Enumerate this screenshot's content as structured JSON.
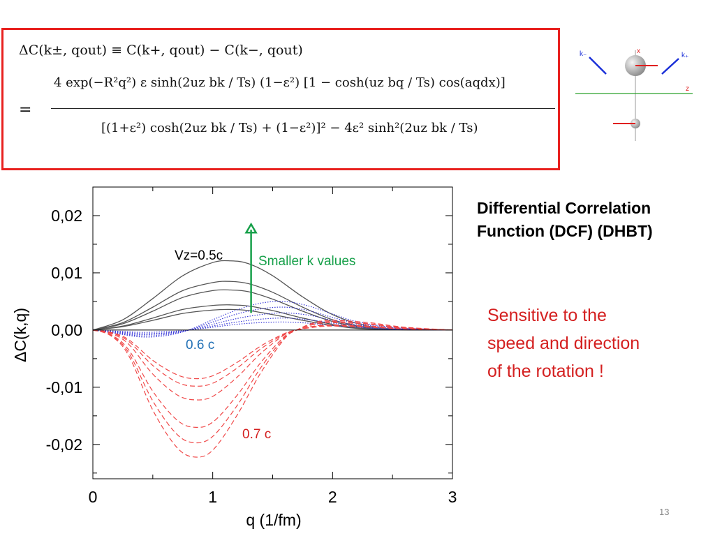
{
  "formula": {
    "line1": "ΔC(k±, qout) ≡ C(k+, qout) − C(k−, qout)",
    "eq": "=",
    "numerator": "4 exp(−R²q²) ε sinh(2uz bk / Ts) (1−ε²) [1 − cosh(uz bq / Ts) cos(aqdx)]",
    "denominator": "[(1+ε²) cosh(2uz bk / Ts) + (1−ε²)]² − 4ε² sinh²(2uz bk / Ts)"
  },
  "diagram": {
    "label_kminus": "k₋",
    "label_kplus": "k₊",
    "label_x": "x",
    "label_z": "z",
    "colors": {
      "axis_z": "#2aa02a",
      "axis_x": "#e02020",
      "k_arrows": "#1a2fd8"
    }
  },
  "heading": {
    "line1": "Differential Correlation",
    "line2": "Function (DCF) (DHBT)"
  },
  "note": {
    "line1": "Sensitive to  the",
    "line2": "speed and direction",
    "line3": "of the rotation !"
  },
  "page_number": "13",
  "chart_data": {
    "type": "line",
    "xlabel": "q  (1/fm)",
    "ylabel": "ΔC(k,q)",
    "xlim": [
      0,
      3
    ],
    "ylim": [
      -0.026,
      0.025
    ],
    "x_ticks": [
      "0",
      "1",
      "2",
      "3"
    ],
    "y_ticks": [
      "0,02",
      "0,01",
      "0,00",
      "-0,01",
      "-0,02"
    ],
    "y_tick_values": [
      0.02,
      0.01,
      0.0,
      -0.01,
      -0.02
    ],
    "grid": false,
    "annotations": {
      "vz05": "Vz=0.5c",
      "vz06": "0.6 c",
      "vz07": "0.7 c",
      "arrow_label": "Smaller k values",
      "colors": {
        "black": "#000000",
        "blue": "#1f6fb5",
        "red": "#d42020",
        "green": "#17a04a"
      }
    },
    "series_groups": [
      {
        "group": "Vz=0.5c",
        "style": "solid",
        "color": "#555555",
        "curves": [
          {
            "x": [
              0,
              0.25,
              0.5,
              0.75,
              1.0,
              1.15,
              1.3,
              1.5,
              1.75,
              2.0,
              2.25,
              2.5,
              3.0
            ],
            "y": [
              0,
              0.0018,
              0.0055,
              0.0095,
              0.0118,
              0.0121,
              0.0116,
              0.0095,
              0.0058,
              0.0027,
              0.0009,
              0.0002,
              0
            ]
          },
          {
            "x": [
              0,
              0.25,
              0.5,
              0.75,
              1.0,
              1.15,
              1.3,
              1.5,
              1.75,
              2.0,
              2.25,
              2.5,
              3.0
            ],
            "y": [
              0,
              0.0013,
              0.004,
              0.0069,
              0.0083,
              0.0085,
              0.0081,
              0.0066,
              0.004,
              0.0018,
              0.0006,
              0.0001,
              0
            ]
          },
          {
            "x": [
              0,
              0.25,
              0.5,
              0.75,
              1.0,
              1.15,
              1.3,
              1.5,
              1.75,
              2.0,
              2.25,
              2.5,
              3.0
            ],
            "y": [
              0,
              0.0011,
              0.0033,
              0.0057,
              0.0069,
              0.007,
              0.0067,
              0.0054,
              0.0033,
              0.0015,
              0.0005,
              0.0001,
              0
            ]
          },
          {
            "x": [
              0,
              0.25,
              0.5,
              0.75,
              1.0,
              1.15,
              1.3,
              1.5,
              1.75,
              2.0,
              2.25,
              2.5,
              3.0
            ],
            "y": [
              0,
              0.0007,
              0.0021,
              0.0036,
              0.0043,
              0.0044,
              0.0042,
              0.0034,
              0.0021,
              0.001,
              0.0003,
              0.0001,
              0
            ]
          },
          {
            "x": [
              0,
              0.25,
              0.5,
              0.75,
              1.0,
              1.15,
              1.3,
              1.5,
              1.75,
              2.0,
              2.25,
              2.5,
              3.0
            ],
            "y": [
              0,
              0.0006,
              0.0017,
              0.0029,
              0.0035,
              0.0036,
              0.0034,
              0.0027,
              0.0017,
              0.0008,
              0.0002,
              0.0001,
              0
            ]
          }
        ]
      },
      {
        "group": "0.6 c",
        "style": "dotted",
        "color": "#3a3ad8",
        "curves": [
          {
            "x": [
              0,
              0.2,
              0.4,
              0.6,
              0.8,
              1.0,
              1.2,
              1.4,
              1.6,
              1.8,
              2.0,
              2.2,
              2.5,
              3.0
            ],
            "y": [
              0,
              -0.0006,
              -0.0012,
              -0.001,
              0.0,
              0.0018,
              0.0035,
              0.0047,
              0.005,
              0.0042,
              0.0028,
              0.0015,
              0.0005,
              0
            ]
          },
          {
            "x": [
              0,
              0.2,
              0.4,
              0.6,
              0.8,
              1.0,
              1.2,
              1.4,
              1.6,
              1.8,
              2.0,
              2.2,
              2.5,
              3.0
            ],
            "y": [
              0,
              -0.0005,
              -0.001,
              -0.0008,
              0.0,
              0.0014,
              0.0028,
              0.0037,
              0.004,
              0.0034,
              0.0022,
              0.0012,
              0.0004,
              0
            ]
          },
          {
            "x": [
              0,
              0.2,
              0.4,
              0.6,
              0.8,
              1.0,
              1.2,
              1.4,
              1.6,
              1.8,
              2.0,
              2.2,
              2.5,
              3.0
            ],
            "y": [
              0,
              -0.0004,
              -0.0008,
              -0.0006,
              0.0,
              0.001,
              0.002,
              0.0027,
              0.003,
              0.0026,
              0.0017,
              0.0009,
              0.0003,
              0
            ]
          },
          {
            "x": [
              0,
              0.2,
              0.4,
              0.6,
              0.8,
              1.0,
              1.2,
              1.4,
              1.6,
              1.8,
              2.0,
              2.2,
              2.5,
              3.0
            ],
            "y": [
              0,
              -0.0003,
              -0.0006,
              -0.0005,
              0.0,
              0.0007,
              0.0014,
              0.0019,
              0.0021,
              0.0018,
              0.0012,
              0.0007,
              0.0002,
              0
            ]
          },
          {
            "x": [
              0,
              0.2,
              0.4,
              0.6,
              0.8,
              1.0,
              1.2,
              1.4,
              1.6,
              1.8,
              2.0,
              2.2,
              2.5,
              3.0
            ],
            "y": [
              0,
              -0.0002,
              -0.0004,
              -0.0003,
              0.0,
              0.0005,
              0.001,
              0.0013,
              0.0014,
              0.0012,
              0.0008,
              0.0005,
              0.0001,
              0
            ]
          }
        ]
      },
      {
        "group": "0.7 c",
        "style": "dashed",
        "color": "#f04848",
        "curves": [
          {
            "x": [
              0,
              0.15,
              0.3,
              0.5,
              0.7,
              0.85,
              1.0,
              1.2,
              1.4,
              1.6,
              1.7,
              1.85,
              2.0,
              2.3,
              2.6,
              3.0
            ],
            "y": [
              0,
              -0.001,
              -0.0045,
              -0.014,
              -0.0205,
              -0.0222,
              -0.021,
              -0.015,
              -0.0075,
              -0.0015,
              0.0,
              0.0013,
              0.0017,
              0.0013,
              0.0005,
              0
            ]
          },
          {
            "x": [
              0,
              0.15,
              0.3,
              0.5,
              0.7,
              0.85,
              1.0,
              1.2,
              1.4,
              1.6,
              1.7,
              1.85,
              2.0,
              2.3,
              2.6,
              3.0
            ],
            "y": [
              0,
              -0.0009,
              -0.004,
              -0.0124,
              -0.0182,
              -0.0197,
              -0.0186,
              -0.0133,
              -0.0066,
              -0.0013,
              0.0,
              0.0011,
              0.0015,
              0.0011,
              0.0004,
              0
            ]
          },
          {
            "x": [
              0,
              0.15,
              0.3,
              0.5,
              0.7,
              0.85,
              1.0,
              1.2,
              1.4,
              1.6,
              1.7,
              1.85,
              2.0,
              2.3,
              2.6,
              3.0
            ],
            "y": [
              0,
              -0.0008,
              -0.0035,
              -0.0107,
              -0.0157,
              -0.017,
              -0.0161,
              -0.0115,
              -0.0057,
              -0.0011,
              0.0,
              0.001,
              0.0013,
              0.001,
              0.0004,
              0
            ]
          },
          {
            "x": [
              0,
              0.15,
              0.3,
              0.5,
              0.7,
              0.85,
              1.0,
              1.2,
              1.4,
              1.6,
              1.7,
              1.85,
              2.0,
              2.3,
              2.6,
              3.0
            ],
            "y": [
              0,
              -0.0006,
              -0.0025,
              -0.0077,
              -0.0113,
              -0.0122,
              -0.0116,
              -0.0083,
              -0.0041,
              -0.0008,
              0.0,
              0.0007,
              0.0009,
              0.0007,
              0.0003,
              0
            ]
          },
          {
            "x": [
              0,
              0.15,
              0.3,
              0.5,
              0.7,
              0.85,
              1.0,
              1.2,
              1.4,
              1.6,
              1.7,
              1.85,
              2.0,
              2.3,
              2.6,
              3.0
            ],
            "y": [
              0,
              -0.0005,
              -0.002,
              -0.0062,
              -0.0091,
              -0.0098,
              -0.0093,
              -0.0067,
              -0.0033,
              -0.0007,
              0.0,
              0.0006,
              0.0008,
              0.0006,
              0.0002,
              0
            ]
          },
          {
            "x": [
              0,
              0.15,
              0.3,
              0.5,
              0.7,
              0.85,
              1.0,
              1.2,
              1.4,
              1.6,
              1.7,
              1.85,
              2.0,
              2.3,
              2.6,
              3.0
            ],
            "y": [
              0,
              -0.0004,
              -0.0017,
              -0.0053,
              -0.0078,
              -0.0085,
              -0.008,
              -0.0057,
              -0.0028,
              -0.0006,
              0.0,
              0.0005,
              0.0007,
              0.0005,
              0.0002,
              0
            ]
          }
        ]
      }
    ],
    "arrow": {
      "x": 1.32,
      "y_from": 0.003,
      "y_to": 0.0185
    }
  }
}
